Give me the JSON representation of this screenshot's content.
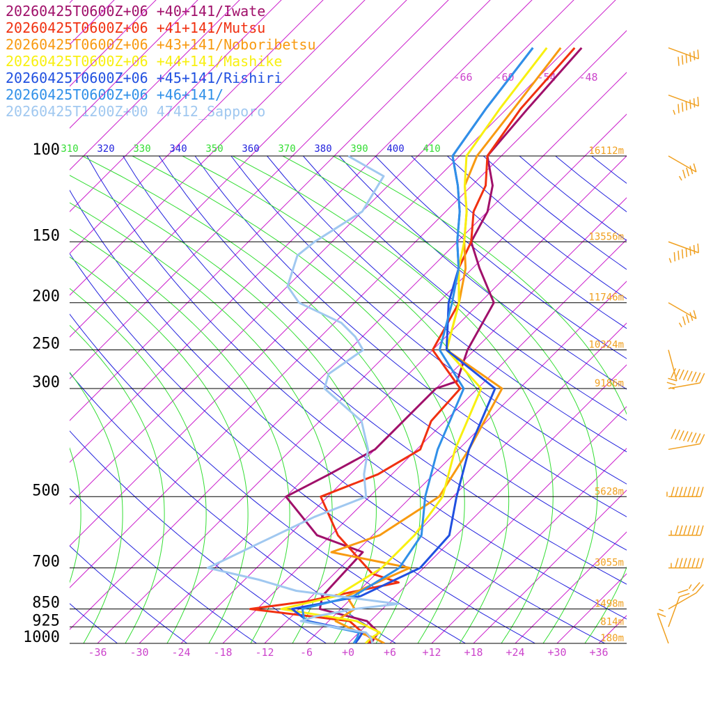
{
  "chart_data": {
    "type": "skew-t log-p sounding",
    "pressure_levels": [
      {
        "p": 100,
        "label": "100",
        "height_label": "16112m"
      },
      {
        "p": 150,
        "label": "150",
        "height_label": "13556m"
      },
      {
        "p": 200,
        "label": "200",
        "height_label": "11746m"
      },
      {
        "p": 250,
        "label": "250",
        "height_label": "10324m"
      },
      {
        "p": 300,
        "label": "300",
        "height_label": "9186m"
      },
      {
        "p": 500,
        "label": "500",
        "height_label": "5628m"
      },
      {
        "p": 700,
        "label": "700",
        "height_label": "3055m"
      },
      {
        "p": 850,
        "label": "850",
        "height_label": "1498m"
      },
      {
        "p": 925,
        "label": "925",
        "height_label": "814m"
      },
      {
        "p": 1000,
        "label": "1000",
        "height_label": "180m"
      }
    ],
    "temperature_ticks": [
      "-36",
      "-30",
      "-24",
      "-18",
      "-12",
      "-6",
      "+0",
      "+6",
      "+12",
      "+18",
      "+24",
      "+30",
      "+36"
    ],
    "temperature_tick_values": [
      -36,
      -30,
      -24,
      -18,
      -12,
      -6,
      0,
      6,
      12,
      18,
      24,
      30,
      36
    ],
    "x_range_at_bottom": [
      -40,
      40
    ],
    "p_range": [
      100,
      1000
    ],
    "theta_labels": [
      "310",
      "320",
      "330",
      "340",
      "350",
      "360",
      "370",
      "380",
      "390",
      "400",
      "410"
    ],
    "theta_values": [
      310,
      320,
      330,
      340,
      350,
      360,
      370,
      380,
      390,
      400,
      410
    ],
    "upper_isotherm_labels": [
      "-66",
      "-60",
      "-54",
      "-48"
    ],
    "upper_isotherm_values": [
      -66,
      -60,
      -54,
      -48
    ],
    "colors": {
      "isobar": "#000000",
      "isotherm": "#cc22cc",
      "theta": "#2222dd",
      "theta_e": "#33dd33",
      "tick_text": "#cc44cc",
      "height_text": "#f0a020",
      "wind_barb": "#f0a020"
    },
    "series": [
      {
        "name": "20260425T0600Z+06 +40+141/Iwate",
        "color": "#a0106a",
        "points": [
          [
            1000,
            3.3
          ],
          [
            975,
            3.0
          ],
          [
            950,
            2.8
          ],
          [
            900,
            -0.5
          ],
          [
            850,
            -9.0
          ],
          [
            800,
            -10.5
          ],
          [
            650,
            -11
          ],
          [
            600,
            -20
          ],
          [
            500,
            -30.0
          ],
          [
            450,
            -27
          ],
          [
            400,
            -24
          ],
          [
            350,
            -24
          ],
          [
            300,
            -24.0
          ],
          [
            290,
            -22
          ],
          [
            250,
            -25.0
          ],
          [
            200,
            -28.0
          ],
          [
            170,
            -35
          ],
          [
            150,
            -40.0
          ],
          [
            130,
            -42
          ],
          [
            115,
            -45
          ],
          [
            100,
            -50.0
          ],
          [
            80,
            -51
          ],
          [
            60,
            -52
          ]
        ]
      },
      {
        "name": "20260425T0600Z+06 +41+141/Mutsu",
        "color": "#f03010",
        "points": [
          [
            1000,
            3.0
          ],
          [
            975,
            2.5
          ],
          [
            950,
            0.5
          ],
          [
            900,
            -3.0
          ],
          [
            850,
            -19.0
          ],
          [
            820,
            -12
          ],
          [
            750,
            -1.5
          ],
          [
            720,
            -6.5
          ],
          [
            600,
            -17
          ],
          [
            500,
            -25.0
          ],
          [
            450,
            -20
          ],
          [
            400,
            -17.5
          ],
          [
            350,
            -20
          ],
          [
            300,
            -20.5
          ],
          [
            250,
            -30.0
          ],
          [
            200,
            -33.0
          ],
          [
            170,
            -38
          ],
          [
            150,
            -40.0
          ],
          [
            130,
            -44
          ],
          [
            115,
            -46
          ],
          [
            100,
            -50.0
          ],
          [
            80,
            -52
          ],
          [
            60,
            -53
          ]
        ]
      },
      {
        "name": "20260425T0600Z+06 +43+141/Noboribetsu",
        "color": "#f89a10",
        "points": [
          [
            1000,
            5.2
          ],
          [
            975,
            3.0
          ],
          [
            950,
            0.0
          ],
          [
            900,
            -5.0
          ],
          [
            850,
            -4.0
          ],
          [
            800,
            -7.0
          ],
          [
            700,
            -2.0
          ],
          [
            650,
            -15.5
          ],
          [
            600,
            -11.0
          ],
          [
            500,
            -8.0
          ],
          [
            400,
            -10.5
          ],
          [
            300,
            -14.5
          ],
          [
            250,
            -28.0
          ],
          [
            200,
            -33.0
          ],
          [
            170,
            -37
          ],
          [
            150,
            -41.0
          ],
          [
            130,
            -45
          ],
          [
            115,
            -49
          ],
          [
            100,
            -51.5
          ],
          [
            80,
            -53
          ],
          [
            60,
            -55
          ]
        ]
      },
      {
        "name": "20260425T0600Z+06 +44+141/Mashike",
        "color": "#f8f010",
        "points": [
          [
            1000,
            2.5
          ],
          [
            975,
            2.5
          ],
          [
            950,
            3.0
          ],
          [
            900,
            -2.0
          ],
          [
            850,
            -14.5
          ],
          [
            800,
            -8.5
          ],
          [
            700,
            -6.0
          ],
          [
            600,
            -6.0
          ],
          [
            500,
            -7.5
          ],
          [
            400,
            -12.5
          ],
          [
            300,
            -17.5
          ],
          [
            250,
            -28.0
          ],
          [
            200,
            -33.0
          ],
          [
            170,
            -38
          ],
          [
            150,
            -41.0
          ],
          [
            130,
            -45
          ],
          [
            115,
            -49
          ],
          [
            100,
            -53
          ],
          [
            80,
            -55
          ],
          [
            60,
            -57
          ]
        ]
      },
      {
        "name": "20260425T0600Z+06 +45+141/Rishiri",
        "color": "#2050e0",
        "points": [
          [
            1000,
            1.0
          ],
          [
            975,
            0.8
          ],
          [
            950,
            0.5
          ],
          [
            900,
            -9.0
          ],
          [
            850,
            -13.0
          ],
          [
            800,
            -5.0
          ],
          [
            700,
            -0.5
          ],
          [
            600,
            -1.0
          ],
          [
            500,
            -5.5
          ],
          [
            400,
            -10.5
          ],
          [
            300,
            -15.5
          ],
          [
            250,
            -28.0
          ],
          [
            200,
            -34.5
          ],
          [
            170,
            -38
          ],
          [
            150,
            -42.0
          ],
          [
            130,
            -46
          ],
          [
            115,
            -50
          ],
          [
            100,
            -55.0
          ],
          [
            80,
            -57
          ],
          [
            60,
            -59
          ]
        ]
      },
      {
        "name": "20260425T0600Z+06 +46+141/",
        "color": "#3090e8",
        "points": [
          [
            1000,
            0.8
          ],
          [
            975,
            0.5
          ],
          [
            950,
            0.0
          ],
          [
            900,
            -9.5
          ],
          [
            850,
            -11.5
          ],
          [
            800,
            -6.0
          ],
          [
            700,
            -3.5
          ],
          [
            600,
            -5.0
          ],
          [
            500,
            -10.0
          ],
          [
            400,
            -15.0
          ],
          [
            300,
            -20.0
          ],
          [
            250,
            -29.0
          ],
          [
            200,
            -34.0
          ],
          [
            170,
            -38
          ],
          [
            150,
            -42.0
          ],
          [
            130,
            -46
          ],
          [
            115,
            -50
          ],
          [
            100,
            -55.0
          ],
          [
            80,
            -57
          ],
          [
            60,
            -59
          ]
        ]
      },
      {
        "name": "20260425T1200Z+00 47412_Sapporo",
        "color": "#a0c8f0",
        "points": [
          [
            1000,
            3.5
          ],
          [
            975,
            2.5
          ],
          [
            950,
            1.0
          ],
          [
            925,
            -4.5
          ],
          [
            900,
            -10.0
          ],
          [
            880,
            -8.5
          ],
          [
            850,
            -4.0
          ],
          [
            830,
            1.5
          ],
          [
            780,
            -15.0
          ],
          [
            740,
            -22.0
          ],
          [
            700,
            -31.0
          ],
          [
            620,
            -27.0
          ],
          [
            550,
            -23.0
          ],
          [
            500,
            -18.5
          ],
          [
            450,
            -22.0
          ],
          [
            400,
            -25.0
          ],
          [
            350,
            -30.0
          ],
          [
            300,
            -40.0
          ],
          [
            280,
            -41.5
          ],
          [
            250,
            -40.0
          ],
          [
            235,
            -43.0
          ],
          [
            220,
            -47.0
          ],
          [
            200,
            -56.0
          ],
          [
            185,
            -60.0
          ],
          [
            160,
            -63.0
          ],
          [
            150,
            -62.5
          ],
          [
            130,
            -60.0
          ],
          [
            110,
            -62.0
          ],
          [
            100,
            -70.0
          ]
        ]
      }
    ],
    "wind_barbs": [
      {
        "p": 60,
        "dir": 290,
        "speed": 60
      },
      {
        "p": 75,
        "dir": 290,
        "speed": 65
      },
      {
        "p": 100,
        "dir": 300,
        "speed": 45
      },
      {
        "p": 150,
        "dir": 290,
        "speed": 75
      },
      {
        "p": 200,
        "dir": 300,
        "speed": 45
      },
      {
        "p": 250,
        "dir": 345,
        "speed": 25
      },
      {
        "p": 300,
        "dir": 260,
        "speed": 80
      },
      {
        "p": 400,
        "dir": 260,
        "speed": 80
      },
      {
        "p": 500,
        "dir": 270,
        "speed": 85
      },
      {
        "p": 600,
        "dir": 270,
        "speed": 75
      },
      {
        "p": 700,
        "dir": 270,
        "speed": 75
      },
      {
        "p": 850,
        "dir": 240,
        "speed": 25
      },
      {
        "p": 925,
        "dir": 200,
        "speed": 20
      },
      {
        "p": 1000,
        "dir": 160,
        "speed": 15
      }
    ]
  }
}
